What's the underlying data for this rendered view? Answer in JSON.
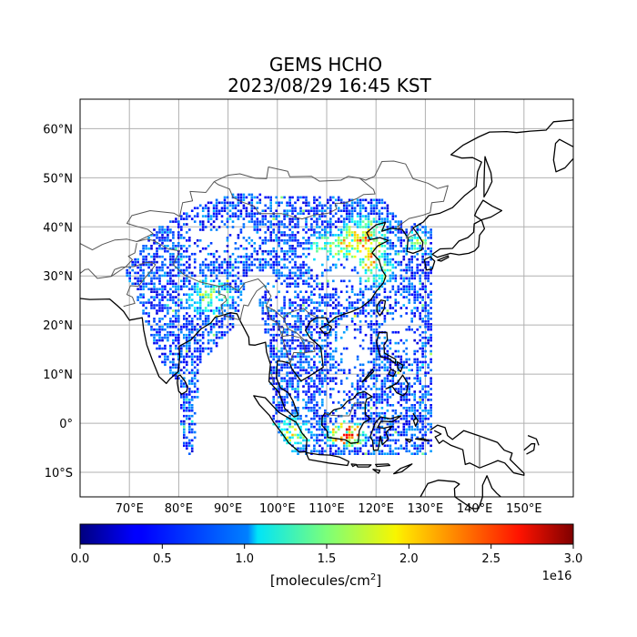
{
  "figure": {
    "title_lines": [
      "GEMS HCHO",
      "2023/08/29 16:45 KST"
    ]
  },
  "map": {
    "lon_range": [
      60,
      160
    ],
    "lat_range": [
      -15,
      66
    ],
    "lon_ticks": [
      "70°E",
      "80°E",
      "90°E",
      "100°E",
      "110°E",
      "120°E",
      "130°E",
      "140°E",
      "150°E"
    ],
    "lat_ticks": [
      "60°N",
      "50°N",
      "40°N",
      "30°N",
      "20°N",
      "10°N",
      "0°",
      "10°S"
    ],
    "grid": true,
    "coastline_color": "#000000",
    "border_color": "#555555"
  },
  "colorbar": {
    "colormap": "jet",
    "range": [
      0.0,
      3.0
    ],
    "tick_labels": [
      "0.0",
      "0.5",
      "1.0",
      "1.5",
      "2.0",
      "2.5",
      "3.0"
    ],
    "exponent": "1e16",
    "unit_prefix": "[molecules/cm",
    "unit_sup": "2",
    "unit_suffix": "]"
  }
}
